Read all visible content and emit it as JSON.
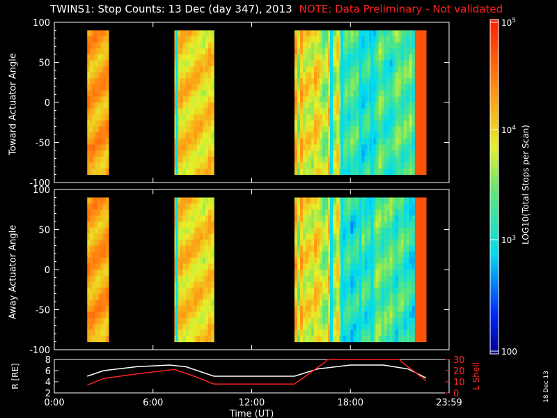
{
  "title": "TWINS1: Stop Counts: 13 Dec (day 347), 2013",
  "note": "NOTE: Data Preliminary - Not validated",
  "stamp": "18 Dec 13",
  "colorbar": {
    "label": "LOG10(Total Stops per Scan)",
    "ticks": [
      "10^5",
      "10^4",
      "10^3",
      "100"
    ]
  },
  "chart_data": [
    {
      "type": "heatmap",
      "name": "toward",
      "ylabel": "Toward Actuator Angle",
      "ylim": [
        -100,
        100
      ],
      "yticks": [
        100,
        50,
        0,
        -50,
        -100
      ],
      "xlim": [
        0,
        24
      ],
      "data_blocks_hours": [
        [
          2.0,
          3.3
        ],
        [
          7.3,
          9.7
        ],
        [
          14.6,
          22.6
        ]
      ]
    },
    {
      "type": "heatmap",
      "name": "away",
      "ylabel": "Away Actuator Angle",
      "ylim": [
        -100,
        100
      ],
      "yticks": [
        100,
        50,
        0,
        -50,
        -100
      ],
      "xlim": [
        0,
        24
      ],
      "data_blocks_hours": [
        [
          2.0,
          3.3
        ],
        [
          7.3,
          9.7
        ],
        [
          14.6,
          22.6
        ]
      ]
    },
    {
      "type": "line",
      "name": "orbit",
      "ylabel": "R [RE]",
      "y2label": "L Shell",
      "ylim": [
        2,
        8
      ],
      "y2lim": [
        0,
        30
      ],
      "yticks": [
        8,
        6,
        4,
        2
      ],
      "y2ticks": [
        30,
        20,
        10,
        0
      ],
      "xlabel": "Time (UT)",
      "xticks": [
        "0:00",
        "6:00",
        "12:00",
        "18:00",
        "23:59"
      ],
      "xtick_hours": [
        0,
        6,
        12,
        18,
        24
      ],
      "series": [
        {
          "name": "R",
          "color": "#ffffff",
          "x": [
            2.0,
            3.0,
            5.0,
            7.0,
            8.0,
            9.7,
            14.6,
            16.0,
            18.0,
            20.0,
            21.5,
            22.6
          ],
          "y": [
            5.0,
            6.0,
            6.7,
            7.0,
            6.7,
            5.0,
            5.0,
            6.3,
            7.0,
            7.0,
            6.3,
            4.7
          ]
        },
        {
          "name": "L Shell",
          "color": "#ff2020",
          "axis": "y2",
          "x": [
            2.0,
            3.0,
            5.0,
            7.3,
            8.5,
            9.7,
            14.6,
            16.5,
            16.6,
            21.0,
            21.1,
            22.6
          ],
          "y": [
            7.0,
            13.0,
            17.0,
            21.0,
            15.0,
            8.0,
            8.0,
            28.0,
            30.0,
            30.0,
            28.0,
            11.0
          ]
        }
      ]
    }
  ]
}
